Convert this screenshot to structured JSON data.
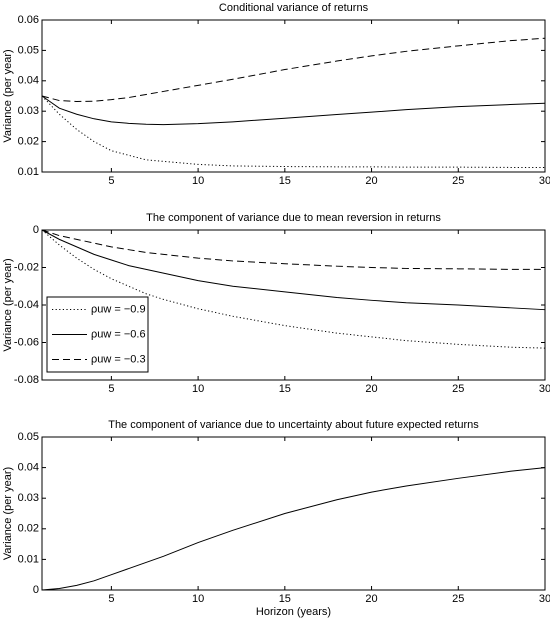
{
  "chart_data": [
    {
      "type": "line",
      "title": "Conditional variance of returns",
      "ylabel": "Variance (per year)",
      "x": [
        1,
        2,
        3,
        4,
        5,
        6,
        7,
        8,
        10,
        12,
        15,
        18,
        20,
        22,
        25,
        28,
        30
      ],
      "series": [
        {
          "name": "ρuw = −0.9",
          "color": "#000000",
          "dash": "dotted",
          "values": [
            0.035,
            0.029,
            0.024,
            0.02,
            0.017,
            0.0155,
            0.014,
            0.0135,
            0.0125,
            0.012,
            0.0118,
            0.0117,
            0.0117,
            0.0116,
            0.0116,
            0.0115,
            0.0115
          ]
        },
        {
          "name": "ρuw = −0.6",
          "color": "#000000",
          "dash": "solid",
          "values": [
            0.035,
            0.031,
            0.029,
            0.0275,
            0.0265,
            0.026,
            0.0257,
            0.0256,
            0.0259,
            0.0265,
            0.0277,
            0.0289,
            0.0297,
            0.0305,
            0.0315,
            0.0322,
            0.0326
          ]
        },
        {
          "name": "ρuw = −0.3",
          "color": "#000000",
          "dash": "dashed",
          "values": [
            0.035,
            0.0335,
            0.0332,
            0.0333,
            0.0338,
            0.0345,
            0.0355,
            0.0365,
            0.0385,
            0.0405,
            0.0437,
            0.0465,
            0.0482,
            0.0497,
            0.0515,
            0.0532,
            0.054
          ]
        }
      ],
      "xlim": [
        1,
        30
      ],
      "xticks": [
        5,
        10,
        15,
        20,
        25,
        30
      ],
      "ylim": [
        0.01,
        0.06
      ],
      "yticks": [
        0.01,
        0.02,
        0.03,
        0.04,
        0.05,
        0.06
      ],
      "legend": "none"
    },
    {
      "type": "line",
      "title": "The component of variance due to mean reversion in returns",
      "ylabel": "Variance (per year)",
      "x": [
        1,
        2,
        3,
        4,
        5,
        6,
        7,
        8,
        10,
        12,
        15,
        18,
        20,
        22,
        25,
        28,
        30
      ],
      "series": [
        {
          "name": "ρuw = −0.9",
          "color": "#000000",
          "dash": "dotted",
          "values": [
            0,
            -0.008,
            -0.015,
            -0.021,
            -0.026,
            -0.03,
            -0.034,
            -0.037,
            -0.042,
            -0.046,
            -0.051,
            -0.055,
            -0.057,
            -0.059,
            -0.061,
            -0.0625,
            -0.063
          ]
        },
        {
          "name": "ρuw = −0.6",
          "color": "#000000",
          "dash": "solid",
          "values": [
            0,
            -0.005,
            -0.009,
            -0.013,
            -0.016,
            -0.019,
            -0.021,
            -0.023,
            -0.027,
            -0.03,
            -0.033,
            -0.036,
            -0.0375,
            -0.0388,
            -0.04,
            -0.0415,
            -0.0425
          ]
        },
        {
          "name": "ρuw = −0.3",
          "color": "#000000",
          "dash": "dashed",
          "values": [
            0,
            -0.003,
            -0.005,
            -0.007,
            -0.009,
            -0.0105,
            -0.012,
            -0.013,
            -0.015,
            -0.0165,
            -0.018,
            -0.0193,
            -0.02,
            -0.0205,
            -0.0207,
            -0.021,
            -0.021
          ]
        }
      ],
      "xlim": [
        1,
        30
      ],
      "xticks": [
        5,
        10,
        15,
        20,
        25,
        30
      ],
      "ylim": [
        -0.08,
        0
      ],
      "yticks": [
        -0.08,
        -0.06,
        -0.04,
        -0.02,
        0
      ],
      "legend": "lower left"
    },
    {
      "type": "line",
      "title": "The component of variance due to uncertainty about future expected returns",
      "ylabel": "Variance (per year)",
      "xlabel": "Horizon (years)",
      "x": [
        1,
        2,
        3,
        4,
        5,
        6,
        7,
        8,
        10,
        12,
        15,
        18,
        20,
        22,
        25,
        28,
        30
      ],
      "series": [
        {
          "color": "#000000",
          "dash": "solid",
          "values": [
            0,
            0.0005,
            0.0015,
            0.003,
            0.005,
            0.007,
            0.009,
            0.011,
            0.0155,
            0.0195,
            0.025,
            0.0295,
            0.032,
            0.034,
            0.0365,
            0.0388,
            0.04
          ]
        }
      ],
      "xlim": [
        1,
        30
      ],
      "xticks": [
        5,
        10,
        15,
        20,
        25,
        30
      ],
      "ylim": [
        0,
        0.05
      ],
      "yticks": [
        0,
        0.01,
        0.02,
        0.03,
        0.04,
        0.05
      ],
      "legend": "none"
    }
  ]
}
